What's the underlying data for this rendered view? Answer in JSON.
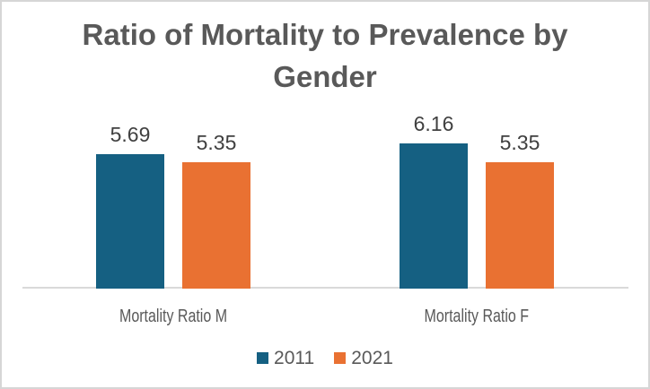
{
  "window": {
    "background": "#ffffff",
    "border_color": "#d6d6d6"
  },
  "chart_data": {
    "type": "bar",
    "title": "Ratio of Mortality to Prevalence by Gender",
    "categories": [
      "Mortality Ratio M",
      "Mortality Ratio F"
    ],
    "series": [
      {
        "name": "2011",
        "color": "#156082",
        "values": [
          5.69,
          6.16
        ]
      },
      {
        "name": "2021",
        "color": "#E97132",
        "values": [
          5.35,
          5.35
        ]
      }
    ],
    "data_labels_shown": true,
    "gridlines": false,
    "legend_position": "bottom",
    "colors": {
      "title_text": "#595959",
      "data_label_text": "#404040",
      "category_text": "#595959",
      "axis_line": "#d9d9d9"
    }
  }
}
